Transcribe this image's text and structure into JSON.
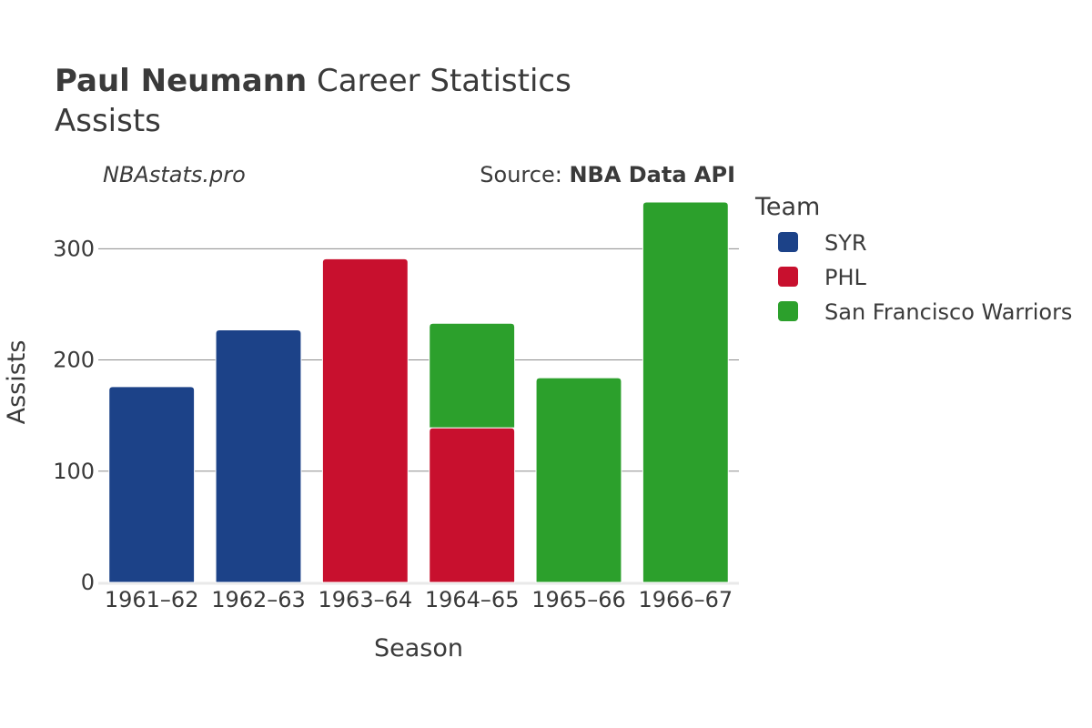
{
  "header": {
    "title_name": "Paul Neumann",
    "title_rest": " Career Statistics",
    "subtitle": "Assists",
    "watermark": "NBAstats.pro",
    "source_prefix": "Source: ",
    "source_name": "NBA Data API"
  },
  "chart_data": {
    "type": "bar",
    "stacked": true,
    "categories": [
      "1961–62",
      "1962–63",
      "1963–64",
      "1964–65",
      "1965–66",
      "1966–67"
    ],
    "series": [
      {
        "name": "SYR",
        "color": "#1c4288",
        "values": [
          176,
          227,
          null,
          null,
          null,
          null
        ]
      },
      {
        "name": "PHL",
        "color": "#c8102e",
        "values": [
          null,
          null,
          291,
          139,
          null,
          null
        ]
      },
      {
        "name": "San Francisco Warriors",
        "color": "#2ca02c",
        "values": [
          null,
          null,
          null,
          94,
          184,
          342
        ]
      }
    ],
    "xlabel": "Season",
    "ylabel": "Assists",
    "ylim": [
      0,
      342
    ],
    "yticks": [
      0,
      100,
      200,
      300
    ],
    "grid": true,
    "legend_title": "Team",
    "legend_position": "right"
  }
}
